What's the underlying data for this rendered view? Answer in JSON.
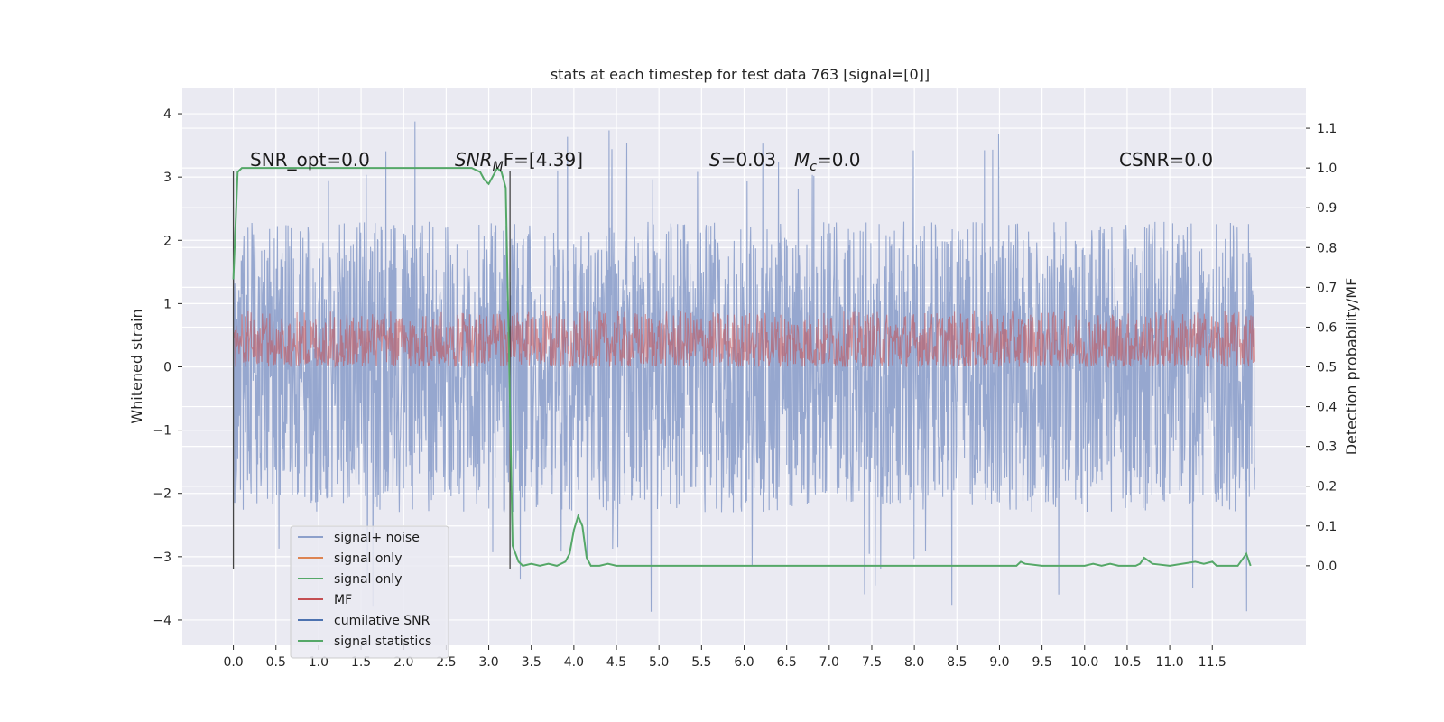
{
  "chart_data": {
    "type": "line",
    "title": "stats at each timestep for test data 763 [signal=[0]]",
    "xlabel": "",
    "ylabel": "Whitened strain",
    "y2label": "Detection probability/MF",
    "xlim": [
      -0.6,
      12.6
    ],
    "ylim": [
      -4.4,
      4.4
    ],
    "y2lim": [
      -0.2,
      1.2
    ],
    "x_ticks": [
      "0.0",
      "0.5",
      "1.0",
      "1.5",
      "2.0",
      "2.5",
      "3.0",
      "3.5",
      "4.0",
      "4.5",
      "5.0",
      "5.5",
      "6.0",
      "6.5",
      "7.0",
      "7.5",
      "8.0",
      "8.5",
      "9.0",
      "9.5",
      "10.0",
      "10.5",
      "11.0",
      "11.5"
    ],
    "y_ticks": [
      "−4",
      "−3",
      "−2",
      "−1",
      "0",
      "1",
      "2",
      "3",
      "4"
    ],
    "y2_ticks": [
      "0.0",
      "0.1",
      "0.2",
      "0.3",
      "0.4",
      "0.5",
      "0.6",
      "0.7",
      "0.8",
      "0.9",
      "1.0",
      "1.1"
    ],
    "grid": true,
    "legend_position": "lower-left",
    "legend": [
      {
        "label": "signal+ noise",
        "color": "#8da0cb"
      },
      {
        "label": "signal only",
        "color": "#dd8452"
      },
      {
        "label": "signal only",
        "color": "#55a868"
      },
      {
        "label": "MF",
        "color": "#c44e52"
      },
      {
        "label": "cumilative SNR",
        "color": "#4c72b0"
      },
      {
        "label": "signal statistics",
        "color": "#55a868"
      }
    ],
    "annotations": {
      "snr_opt": "SNR_opt=0.0",
      "snr_mf_prefix": "SNR",
      "snr_mf_sub": "M",
      "snr_mf_suffix": "F=[4.39]",
      "s_prefix": "S",
      "s_value": "=0.03",
      "mc_prefix": "M",
      "mc_sub": "c",
      "mc_value": "=0.0",
      "csnr": "CSNR=0.0"
    },
    "series_noise": {
      "name": "signal+ noise",
      "color": "#8da0cb",
      "x_range": [
        0.0,
        12.0
      ],
      "y_range_typical": [
        -2.3,
        2.3
      ],
      "y_extremes": [
        -4.0,
        4.0
      ]
    },
    "series_mf": {
      "name": "MF",
      "color": "#c44e52",
      "x_range": [
        0.0,
        12.0
      ],
      "y2_range_typical": [
        0.5,
        0.64
      ]
    },
    "segment_markers": {
      "x": [
        0.0,
        3.25
      ],
      "y_range": [
        -3.2,
        3.1
      ]
    },
    "series_statistics": {
      "name": "signal statistics",
      "color": "#55a868",
      "x": [
        0.0,
        0.05,
        0.1,
        0.3,
        0.6,
        1.0,
        1.5,
        2.0,
        2.5,
        2.8,
        2.9,
        2.95,
        3.0,
        3.05,
        3.1,
        3.15,
        3.2,
        3.25,
        3.28,
        3.35,
        3.4,
        3.5,
        3.6,
        3.7,
        3.8,
        3.9,
        3.95,
        4.0,
        4.05,
        4.1,
        4.15,
        4.2,
        4.3,
        4.4,
        4.5,
        5.0,
        6.0,
        7.0,
        8.0,
        9.0,
        9.2,
        9.25,
        9.3,
        9.5,
        10.0,
        10.1,
        10.2,
        10.3,
        10.4,
        10.6,
        10.65,
        10.7,
        10.8,
        11.0,
        11.3,
        11.4,
        11.5,
        11.55,
        11.6,
        11.8,
        11.9,
        11.95
      ],
      "y": [
        0.72,
        0.99,
        1.0,
        1.0,
        1.0,
        1.0,
        1.0,
        1.0,
        1.0,
        1.0,
        0.99,
        0.97,
        0.96,
        0.98,
        1.0,
        0.99,
        0.95,
        0.4,
        0.05,
        0.01,
        0.0,
        0.005,
        0.0,
        0.005,
        0.0,
        0.01,
        0.03,
        0.09,
        0.125,
        0.1,
        0.02,
        0.0,
        0.0,
        0.005,
        0.0,
        0.0,
        0.0,
        0.0,
        0.0,
        0.0,
        0.0,
        0.01,
        0.005,
        0.0,
        0.0,
        0.005,
        0.0,
        0.005,
        0.0,
        0.0,
        0.005,
        0.02,
        0.005,
        0.0,
        0.01,
        0.005,
        0.01,
        0.0,
        0.0,
        0.0,
        0.03,
        0.0
      ]
    }
  }
}
